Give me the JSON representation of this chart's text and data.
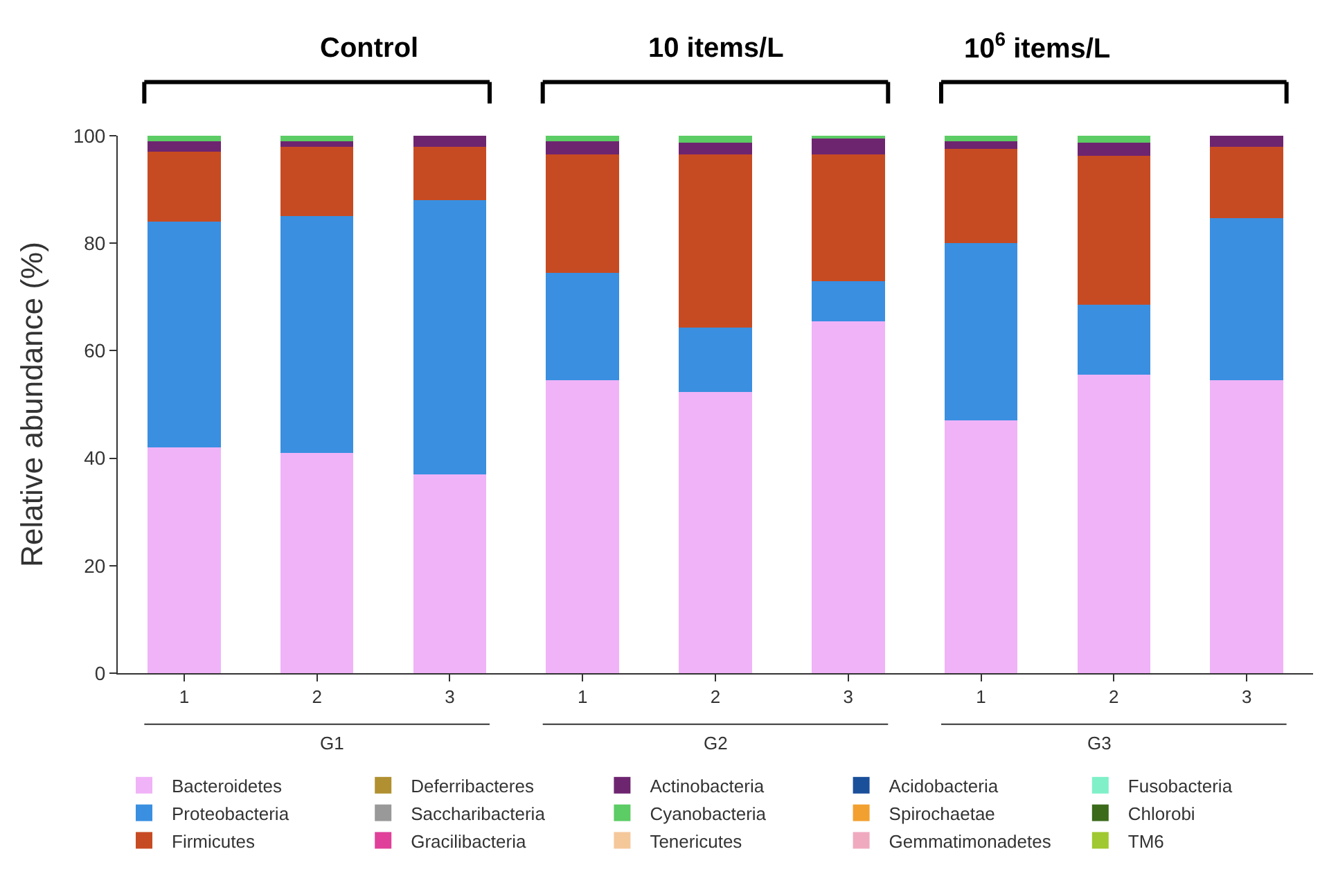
{
  "chart_data": {
    "type": "bar",
    "stacked": true,
    "ylabel": "Relative abundance (%)",
    "categories": [
      "1",
      "2",
      "3",
      "1",
      "2",
      "3",
      "1",
      "2",
      "3"
    ],
    "ylim": [
      0,
      100
    ],
    "yticks": [
      0,
      20,
      40,
      60,
      80,
      100
    ],
    "legend": "bottom",
    "annotations": [
      "Control",
      "10 items/L",
      "10$^{6}$ items/L",
      "G1",
      "G2",
      "G3"
    ],
    "series": [
      {
        "name": "Bacteroidetes",
        "color": "#f0b3f8",
        "values": [
          42,
          41,
          37,
          54.5,
          52.3,
          65.5,
          47,
          55.5,
          54.5
        ]
      },
      {
        "name": "Proteobacteria",
        "color": "#3a8fe0",
        "values": [
          42,
          44,
          51,
          20,
          12,
          7.5,
          33,
          13,
          30.2
        ]
      },
      {
        "name": "Firmicutes",
        "color": "#c74b22",
        "values": [
          13,
          13,
          10,
          22,
          32.2,
          23.5,
          17.5,
          27.8,
          13.3
        ]
      },
      {
        "name": "Deferribacteres",
        "color": "#b09030",
        "values": [
          0,
          0,
          0,
          0,
          0,
          0,
          0,
          0,
          0
        ]
      },
      {
        "name": "Saccharibacteria",
        "color": "#999999",
        "values": [
          0,
          0,
          0,
          0,
          0,
          0,
          0,
          0,
          0
        ]
      },
      {
        "name": "Gracilibacteria",
        "color": "#e0409a",
        "values": [
          0,
          0,
          0,
          0,
          0,
          0,
          0,
          0,
          0
        ]
      },
      {
        "name": "Actinobacteria",
        "color": "#6e2570",
        "values": [
          2,
          1,
          2,
          2.5,
          2.2,
          3,
          1.5,
          2.4,
          2
        ]
      },
      {
        "name": "Cyanobacteria",
        "color": "#5ccc64",
        "values": [
          1,
          1,
          0,
          1,
          1.3,
          0.5,
          1,
          1.3,
          0
        ]
      },
      {
        "name": "Tenericutes",
        "color": "#f5c89a",
        "values": [
          0,
          0,
          0,
          0,
          0,
          0,
          0,
          0,
          0
        ]
      },
      {
        "name": "Acidobacteria",
        "color": "#1a4f9a",
        "values": [
          0,
          0,
          0,
          0,
          0,
          0,
          0,
          0,
          0
        ]
      },
      {
        "name": "Spirochaetae",
        "color": "#f2a030",
        "values": [
          0,
          0,
          0,
          0,
          0,
          0,
          0,
          0,
          0
        ]
      },
      {
        "name": "Gemmatimonadetes",
        "color": "#f0aac0",
        "values": [
          0,
          0,
          0,
          0,
          0,
          0,
          0,
          0,
          0
        ]
      },
      {
        "name": "Fusobacteria",
        "color": "#7ff0c8",
        "values": [
          0,
          0,
          0,
          0,
          0,
          0,
          0,
          0,
          0
        ]
      },
      {
        "name": "Chlorobi",
        "color": "#3a6a1a",
        "values": [
          0,
          0,
          0,
          0,
          0,
          0,
          0,
          0,
          0
        ]
      },
      {
        "name": "TM6",
        "color": "#a0c830",
        "values": [
          0,
          0,
          0,
          0,
          0,
          0,
          0,
          0,
          0
        ]
      }
    ]
  }
}
